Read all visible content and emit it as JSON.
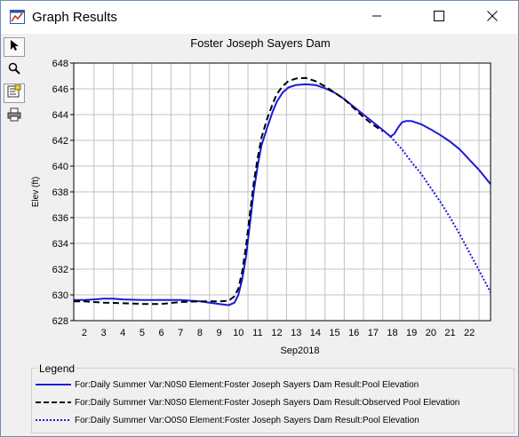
{
  "window": {
    "title": "Graph Results",
    "minimize_icon": "minimize-icon",
    "maximize_icon": "maximize-icon",
    "close_icon": "close-icon"
  },
  "toolbar": {
    "tools": [
      "pointer-icon",
      "zoom-icon",
      "edit-properties-icon",
      "print-icon"
    ]
  },
  "colors": {
    "series_blue": "#1a1adb",
    "series_black": "#000000",
    "grid": "#c0c0c0"
  },
  "chart_data": {
    "type": "line",
    "title": "Foster Joseph Sayers Dam",
    "ylabel": "Elev (ft)",
    "xlabel": "Sep2018",
    "ylim": [
      628,
      648
    ],
    "xlim": [
      1.45,
      23.1
    ],
    "yticks": [
      628,
      630,
      632,
      634,
      636,
      638,
      640,
      642,
      644,
      646,
      648
    ],
    "xtick_labels": [
      "2",
      "3",
      "4",
      "5",
      "6",
      "7",
      "8",
      "9",
      "10",
      "11",
      "12",
      "13",
      "14",
      "15",
      "16",
      "17",
      "18",
      "19",
      "20",
      "21",
      "22"
    ],
    "grid": true,
    "legend_title": "Legend",
    "series": [
      {
        "name": "For:Daily Summer Var:N0S0 Element:Foster Joseph Sayers Dam Result:Pool Elevation",
        "color": "#1a1adb",
        "style": "solid",
        "width": 2,
        "x": [
          1.45,
          2,
          2.5,
          3,
          3.5,
          4,
          5,
          6,
          7,
          8,
          8.5,
          9,
          9.5,
          9.8,
          10.0,
          10.2,
          10.4,
          10.6,
          10.8,
          11.0,
          11.2,
          11.5,
          11.8,
          12.0,
          12.3,
          12.6,
          13.0,
          13.5,
          14.0,
          14.5,
          15.0,
          15.5,
          16.0,
          16.5,
          17.0,
          17.5,
          17.9,
          18.1,
          18.3,
          18.5,
          18.7,
          19.0,
          19.5,
          20.0,
          20.5,
          21.0,
          21.5,
          22.0,
          22.5,
          23.1
        ],
        "y": [
          629.6,
          629.6,
          629.65,
          629.7,
          629.7,
          629.65,
          629.6,
          629.6,
          629.6,
          629.5,
          629.4,
          629.3,
          629.2,
          629.4,
          630.0,
          631.2,
          633.0,
          635.5,
          638.0,
          640.0,
          641.6,
          643.0,
          644.3,
          645.0,
          645.7,
          646.1,
          646.3,
          646.35,
          646.3,
          646.05,
          645.7,
          645.2,
          644.6,
          644.0,
          643.4,
          642.8,
          642.3,
          642.5,
          643.0,
          643.4,
          643.5,
          643.5,
          643.25,
          642.85,
          642.4,
          641.9,
          641.3,
          640.5,
          639.7,
          638.6
        ]
      },
      {
        "name": "For:Daily Summer Var:N0S0 Element:Foster Joseph Sayers Dam Result:Observed Pool Elevation",
        "color": "#000000",
        "style": "dashed",
        "width": 2,
        "x": [
          1.45,
          2,
          3,
          4,
          5,
          6,
          7,
          8,
          8.5,
          9,
          9.5,
          9.8,
          10.0,
          10.2,
          10.4,
          10.6,
          10.8,
          11.0,
          11.2,
          11.5,
          11.8,
          12.0,
          12.3,
          12.6,
          13.0,
          13.5,
          14.0,
          14.5,
          15.0,
          15.5,
          16.0,
          16.5,
          17.0,
          17.5
        ],
        "y": [
          629.5,
          629.5,
          629.4,
          629.35,
          629.3,
          629.3,
          629.45,
          629.5,
          629.5,
          629.5,
          629.55,
          629.9,
          630.5,
          631.8,
          633.8,
          636.3,
          638.7,
          640.6,
          642.2,
          643.7,
          644.9,
          645.6,
          646.2,
          646.6,
          646.8,
          646.85,
          646.6,
          646.2,
          645.7,
          645.2,
          644.5,
          643.8,
          643.2,
          642.7
        ]
      },
      {
        "name": "For:Daily Summer Var:O0S0 Element:Foster Joseph Sayers Dam Result:Pool Elevation",
        "color": "#1a1adb",
        "style": "dotted",
        "width": 2,
        "x": [
          17.9,
          18.5,
          19.0,
          19.5,
          20.0,
          20.5,
          21.0,
          21.5,
          22.0,
          22.5,
          23.1
        ],
        "y": [
          642.3,
          641.3,
          640.3,
          639.4,
          638.3,
          637.2,
          636.0,
          634.7,
          633.3,
          631.9,
          630.2
        ]
      }
    ]
  }
}
